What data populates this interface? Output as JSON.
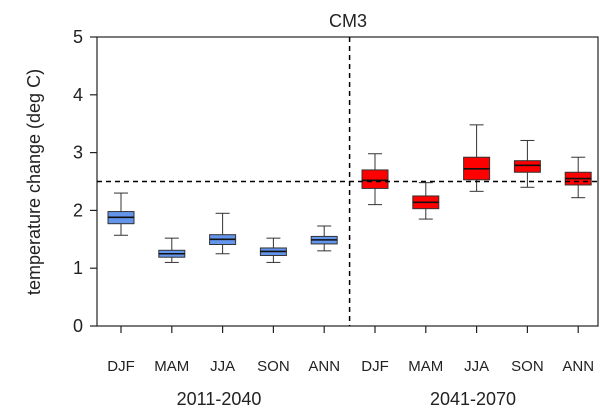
{
  "chart_data": {
    "type": "box",
    "title": "CM3",
    "ylabel": "temperature change (deg C)",
    "xlabel": "",
    "ylim": [
      0,
      5
    ],
    "yticks": [
      0,
      1,
      2,
      3,
      4,
      5
    ],
    "grid": false,
    "groups": [
      {
        "period": "2011-2040",
        "color": "#6495ED",
        "boxes": [
          {
            "season": "DJF",
            "whisker_low": 1.57,
            "q1": 1.77,
            "median": 1.88,
            "q3": 1.98,
            "whisker_high": 2.3
          },
          {
            "season": "MAM",
            "whisker_low": 1.1,
            "q1": 1.19,
            "median": 1.25,
            "q3": 1.31,
            "whisker_high": 1.52
          },
          {
            "season": "JJA",
            "whisker_low": 1.25,
            "q1": 1.41,
            "median": 1.5,
            "q3": 1.58,
            "whisker_high": 1.95
          },
          {
            "season": "SON",
            "whisker_low": 1.1,
            "q1": 1.22,
            "median": 1.29,
            "q3": 1.35,
            "whisker_high": 1.52
          },
          {
            "season": "ANN",
            "whisker_low": 1.3,
            "q1": 1.42,
            "median": 1.49,
            "q3": 1.55,
            "whisker_high": 1.73
          }
        ]
      },
      {
        "period": "2041-2070",
        "color": "#FF0000",
        "boxes": [
          {
            "season": "DJF",
            "whisker_low": 2.1,
            "q1": 2.38,
            "median": 2.52,
            "q3": 2.7,
            "whisker_high": 2.98
          },
          {
            "season": "MAM",
            "whisker_low": 1.85,
            "q1": 2.03,
            "median": 2.14,
            "q3": 2.25,
            "whisker_high": 2.48
          },
          {
            "season": "JJA",
            "whisker_low": 2.33,
            "q1": 2.53,
            "median": 2.72,
            "q3": 2.92,
            "whisker_high": 3.48
          },
          {
            "season": "SON",
            "whisker_low": 2.4,
            "q1": 2.66,
            "median": 2.78,
            "q3": 2.86,
            "whisker_high": 3.21
          },
          {
            "season": "ANN",
            "whisker_low": 2.22,
            "q1": 2.44,
            "median": 2.55,
            "q3": 2.66,
            "whisker_high": 2.92
          }
        ]
      }
    ],
    "reference_line_y": 2.5,
    "colors": {
      "box_2011_2040": "#6495ED",
      "box_2041_2070": "#FF0000",
      "axis": "#222222"
    }
  }
}
